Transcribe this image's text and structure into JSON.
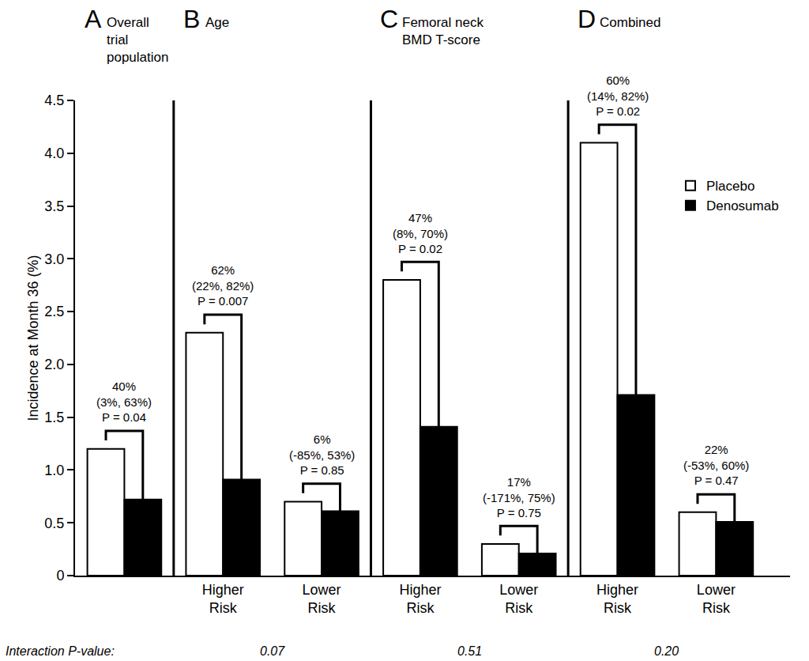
{
  "chart_data": {
    "type": "bar",
    "y_label": "Incidence at Month 36 (%)",
    "ylim": [
      0,
      4.5
    ],
    "yticks": [
      0,
      0.5,
      {
        "value": 1,
        "label": "1.0"
      },
      1.5,
      {
        "value": 2,
        "label": "2.0"
      },
      2.5,
      {
        "value": 3,
        "label": "3.0"
      },
      3.5,
      {
        "value": 4,
        "label": "4.0"
      },
      4.5
    ],
    "grid": false,
    "legend": "upper right",
    "series": [
      {
        "name": "Placebo",
        "color": "#ffffff",
        "values": [
          1.2,
          2.3,
          0.7,
          2.8,
          0.3,
          4.1,
          0.6
        ]
      },
      {
        "name": "Denosumab",
        "color": "#000000",
        "values": [
          0.72,
          0.91,
          0.61,
          1.41,
          0.21,
          1.71,
          0.51
        ]
      }
    ],
    "panels": [
      {
        "letter": "A",
        "title": [
          "Overall",
          "trial",
          "population"
        ],
        "categories": [
          null
        ],
        "comparisons": [
          {
            "reduction": "40%",
            "ci": "(3%, 63%)",
            "p": "P = 0.04"
          }
        ]
      },
      {
        "letter": "B",
        "title": [
          "Age"
        ],
        "categories": [
          "Higher Risk",
          "Lower Risk"
        ],
        "interaction_p": "0.07",
        "comparisons": [
          {
            "reduction": "62%",
            "ci": "(22%, 82%)",
            "p": "P = 0.007"
          },
          {
            "reduction": "6%",
            "ci": "(-85%, 53%)",
            "p": "P = 0.85"
          }
        ]
      },
      {
        "letter": "C",
        "title": [
          "Femoral neck",
          "BMD T-score"
        ],
        "categories": [
          "Higher Risk",
          "Lower Risk"
        ],
        "interaction_p": "0.51",
        "comparisons": [
          {
            "reduction": "47%",
            "ci": "(8%, 70%)",
            "p": "P = 0.02"
          },
          {
            "reduction": "17%",
            "ci": "(-171%, 75%)",
            "p": "P = 0.75"
          }
        ]
      },
      {
        "letter": "D",
        "title": [
          "Combined"
        ],
        "categories": [
          "Higher Risk",
          "Lower Risk"
        ],
        "interaction_p": "0.20",
        "comparisons": [
          {
            "reduction": "60%",
            "ci": "(14%, 82%)",
            "p": "P = 0.02"
          },
          {
            "reduction": "22%",
            "ci": "(-53%, 60%)",
            "p": "P = 0.47"
          }
        ]
      }
    ],
    "interaction_label": "Interaction P-value:"
  }
}
